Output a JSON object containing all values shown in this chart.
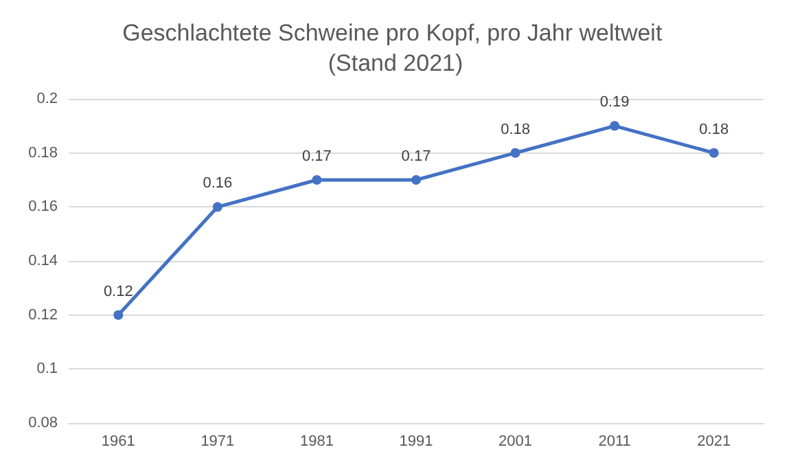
{
  "chart_data": {
    "type": "line",
    "title": "Geschlachtete Schweine pro Kopf, pro Jahr weltweit (Stand 2021)",
    "categories": [
      "1961",
      "1971",
      "1981",
      "1991",
      "2001",
      "2011",
      "2021"
    ],
    "values": [
      0.12,
      0.16,
      0.17,
      0.17,
      0.18,
      0.19,
      0.18
    ],
    "color": "#4472c4",
    "ylim": [
      0.08,
      0.2
    ],
    "yticks": [
      0.08,
      0.1,
      0.12,
      0.14,
      0.16,
      0.18,
      0.2
    ],
    "grid": "y",
    "marker": "circle",
    "line_style": "solid",
    "data_labels": true
  }
}
